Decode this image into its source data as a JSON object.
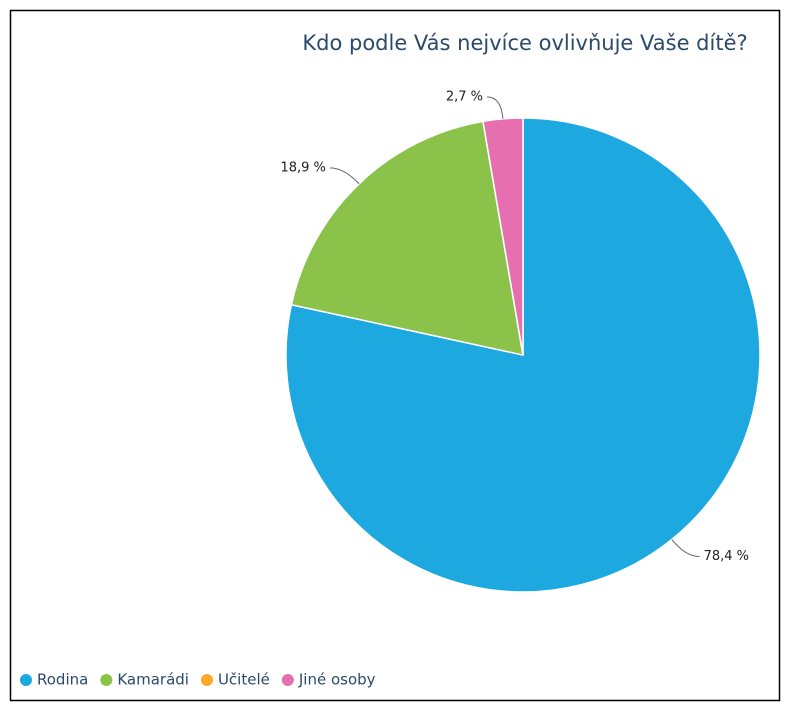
{
  "chart_data": {
    "type": "pie",
    "title": "Kdo podle Vás nejvíce ovlivňuje Vaše dítě?",
    "categories": [
      "Rodina",
      "Kamarádi",
      "Učitelé",
      "Jiné osoby"
    ],
    "values": [
      78.4,
      18.9,
      0,
      2.7
    ],
    "value_labels": [
      "78,4 %",
      "18,9 %",
      null,
      "2,7 %"
    ],
    "colors": [
      "#1ea8e0",
      "#8bc34a",
      "#ffa726",
      "#e66fb0"
    ],
    "legend": "bottom-left"
  }
}
